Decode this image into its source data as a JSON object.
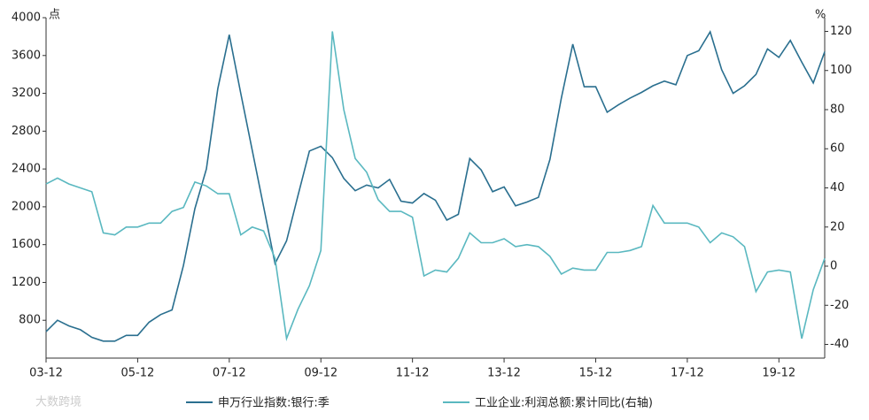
{
  "chart_data": {
    "type": "line",
    "y_unit": "点",
    "y2_unit": "%",
    "categories": [
      "03-12",
      null,
      null,
      null,
      null,
      null,
      null,
      null,
      "05-12",
      null,
      null,
      null,
      null,
      null,
      null,
      null,
      "07-12",
      null,
      null,
      null,
      null,
      null,
      null,
      null,
      "09-12",
      null,
      null,
      null,
      null,
      null,
      null,
      null,
      "11-12",
      null,
      null,
      null,
      null,
      null,
      null,
      null,
      "13-12",
      null,
      null,
      null,
      null,
      null,
      null,
      null,
      "15-12",
      null,
      null,
      null,
      null,
      null,
      null,
      null,
      "17-12",
      null,
      null,
      null,
      null,
      null,
      null,
      null,
      "19-12",
      null,
      null,
      null,
      null
    ],
    "series": [
      {
        "name": "申万行业指数:银行:季",
        "color": "#2a6f8f",
        "axis": "y",
        "values": [
          680,
          800,
          740,
          700,
          620,
          580,
          580,
          640,
          640,
          780,
          860,
          910,
          1380,
          1980,
          2400,
          3250,
          3820,
          3200,
          2600,
          2000,
          1400,
          1640,
          2120,
          2590,
          2640,
          2520,
          2300,
          2170,
          2230,
          2200,
          2290,
          2060,
          2040,
          2140,
          2070,
          1860,
          1920,
          2510,
          2390,
          2160,
          2210,
          2010,
          2050,
          2100,
          2500,
          3150,
          3720,
          3270,
          3270,
          3000,
          3080,
          3150,
          3210,
          3280,
          3330,
          3290,
          3600,
          3650,
          3850,
          3450,
          3200,
          3280,
          3400,
          3670,
          3580,
          3760,
          3530,
          3310,
          3640
        ]
      },
      {
        "name": "工业企业:利润总额:累计同比(右轴)",
        "color": "#5ab8c0",
        "axis": "y2",
        "values": [
          42,
          45,
          42,
          40,
          38,
          17,
          16,
          20,
          20,
          22,
          22,
          28,
          30,
          43,
          41,
          37,
          37,
          16,
          20,
          18,
          4,
          -37,
          -22,
          -10,
          8,
          120,
          80,
          55,
          48,
          34,
          28,
          28,
          25,
          -5,
          -2,
          -3,
          4,
          17,
          12,
          12,
          14,
          10,
          11,
          10,
          5,
          -4,
          -1,
          -2,
          -2,
          7,
          7,
          8,
          10,
          31,
          22,
          22,
          22,
          20,
          12,
          17,
          15,
          10,
          -13,
          -3,
          -2,
          -3,
          -37,
          -12,
          4
        ]
      }
    ],
    "ylim": [
      400,
      4000
    ],
    "yticks": [
      800,
      1200,
      1600,
      2000,
      2400,
      2800,
      3200,
      3600,
      4000
    ],
    "y2lim": [
      -47,
      127
    ],
    "y2ticks": [
      -40,
      -20,
      0,
      20,
      40,
      60,
      80,
      100,
      120
    ],
    "watermark": "大数跨境"
  }
}
